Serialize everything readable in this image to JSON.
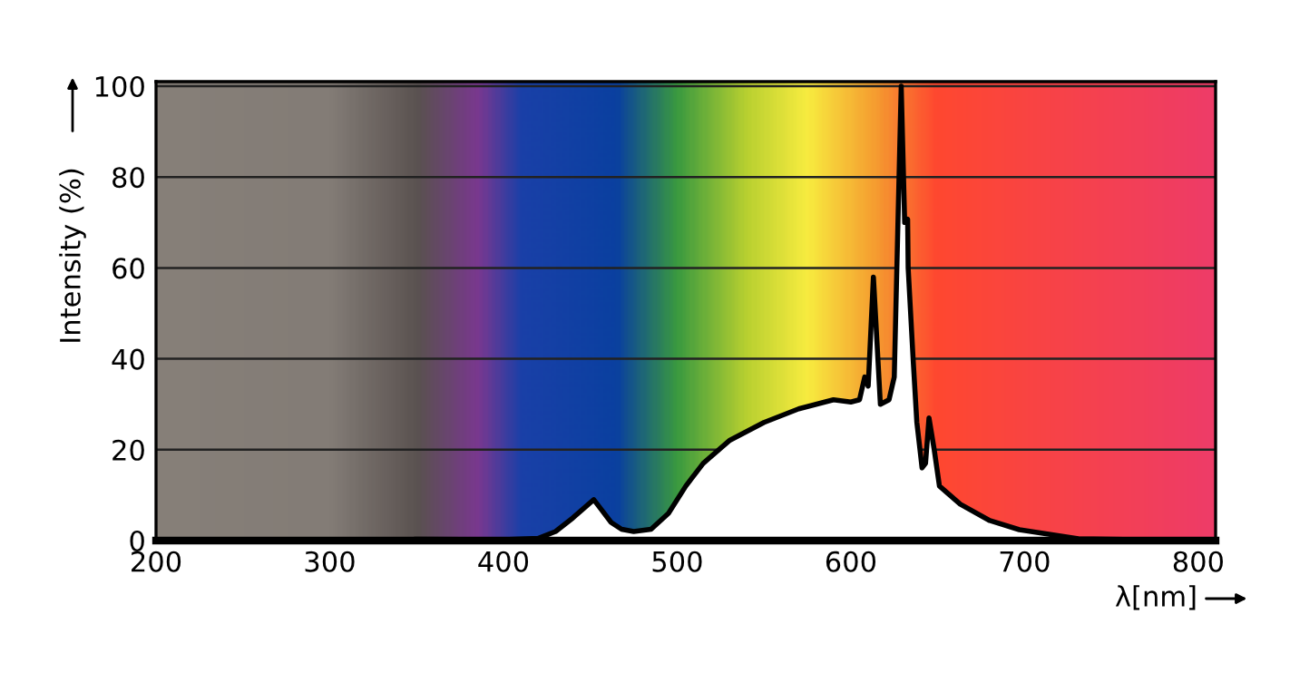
{
  "chart_data": {
    "type": "area",
    "xlabel": "λ[nm]",
    "ylabel": "Intensity (%)",
    "xlim": [
      200,
      810
    ],
    "ylim": [
      0,
      101
    ],
    "xticks": [
      200,
      300,
      400,
      500,
      600,
      700,
      800
    ],
    "yticks": [
      0,
      20,
      40,
      60,
      80,
      100
    ],
    "grid": "y",
    "series": [
      {
        "color": "#ffffff",
        "x": [
          350,
          400,
          420,
          430,
          440,
          446,
          452,
          456,
          462,
          468,
          475,
          485,
          495,
          505,
          515,
          530,
          550,
          570,
          590,
          600,
          605,
          608,
          610,
          613,
          617,
          622,
          625,
          629,
          631,
          632.7,
          633,
          636,
          638,
          641,
          643,
          645,
          648,
          651,
          663,
          680,
          697,
          731,
          800
        ],
        "values": [
          0.3,
          0.2,
          0.5,
          2,
          5,
          7,
          9,
          7,
          4,
          2.5,
          2,
          2.5,
          6,
          12,
          17,
          22,
          26,
          29,
          31,
          30.5,
          31,
          36,
          34,
          58,
          30,
          31,
          36,
          100,
          70,
          70.7,
          60,
          39,
          26,
          16,
          17,
          27,
          20,
          12,
          8,
          4.4,
          2.4,
          0.4,
          0
        ]
      }
    ]
  }
}
